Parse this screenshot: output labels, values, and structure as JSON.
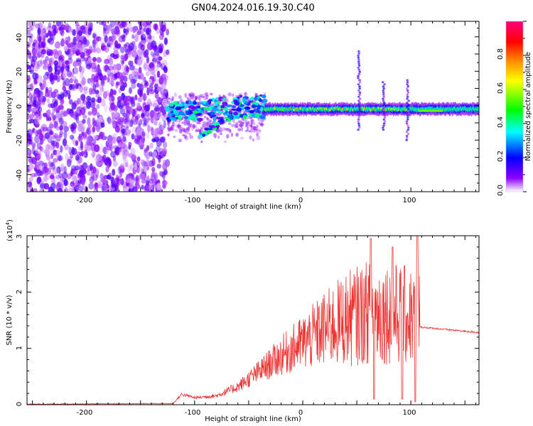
{
  "chart_data": [
    {
      "type": "heatmap",
      "title": "GN04.2024.016.19.30.C40",
      "xlabel": "Height of straight line (km)",
      "ylabel": "Frequency (Hz)",
      "xlim": [
        -255,
        163
      ],
      "ylim": [
        -50,
        49
      ],
      "x_ticks": [
        "-200",
        "-100",
        "0",
        "100"
      ],
      "y_ticks": [
        "40",
        "20",
        "0",
        "-20",
        "-40"
      ],
      "colorbar": {
        "label": "Normalized spectral amplitude",
        "range": [
          0.0,
          1.0
        ],
        "ticks": [
          "0.0",
          "0.2",
          "0.4",
          "0.6",
          "0.8"
        ],
        "colors": [
          "#ffffff",
          "#8a00ff",
          "#0000ff",
          "#00ffff",
          "#00ff00",
          "#ffff00",
          "#ff8800",
          "#ff0000",
          "#ff0080"
        ]
      },
      "regions": [
        {
          "x_range": [
            -255,
            -125
          ],
          "freq_range": [
            -50,
            49
          ],
          "amplitude": 0.1,
          "pattern": "noise"
        },
        {
          "x_range": [
            -125,
            -35
          ],
          "center_freq": -4,
          "amplitude": 0.3,
          "pattern": "scattered"
        },
        {
          "x_range": [
            -35,
            100
          ],
          "center_freq": -2,
          "amplitude": 0.8,
          "pattern": "band"
        },
        {
          "x_range": [
            100,
            163
          ],
          "center_freq": -2,
          "amplitude": 0.55,
          "pattern": "band"
        }
      ],
      "spikes": [
        {
          "x": 52,
          "freq_range": [
            -14,
            32
          ]
        },
        {
          "x": 75,
          "freq_range": [
            -14,
            14
          ]
        },
        {
          "x": 97,
          "freq_range": [
            -20,
            15
          ]
        }
      ]
    },
    {
      "type": "line",
      "xlabel": "Height of straight line (km)",
      "ylabel": "SNR (10 * v/v)",
      "y_multiplier": "(x10",
      "y_multiplier_exp": "4",
      "xlim": [
        -255,
        163
      ],
      "ylim": [
        0,
        3
      ],
      "x_ticks": [
        "-200",
        "-100",
        "0",
        "100"
      ],
      "y_ticks": [
        "0",
        "1",
        "2",
        "3"
      ],
      "color": "#ee3333",
      "envelope": [
        {
          "x": -255,
          "y": 0.01
        },
        {
          "x": -120,
          "y": 0.02
        },
        {
          "x": -112,
          "y": 0.18
        },
        {
          "x": -100,
          "y": 0.12
        },
        {
          "x": -80,
          "y": 0.15
        },
        {
          "x": -60,
          "y": 0.3
        },
        {
          "x": -40,
          "y": 0.55
        },
        {
          "x": -20,
          "y": 0.8
        },
        {
          "x": 0,
          "y": 1.0
        },
        {
          "x": 20,
          "y": 1.2
        },
        {
          "x": 40,
          "y": 1.35
        },
        {
          "x": 60,
          "y": 1.45
        },
        {
          "x": 80,
          "y": 1.45
        },
        {
          "x": 95,
          "y": 1.4
        },
        {
          "x": 108,
          "y": 1.38
        },
        {
          "x": 163,
          "y": 1.28
        }
      ],
      "peaks": [
        {
          "x": 63,
          "y": 2.95
        },
        {
          "x": 83,
          "y": 2.8
        },
        {
          "x": 106,
          "y": 3.0
        }
      ],
      "dips": [
        {
          "x": 66,
          "y": 0.1
        },
        {
          "x": 92,
          "y": 0.1
        },
        {
          "x": 104,
          "y": 0.05
        }
      ]
    }
  ]
}
